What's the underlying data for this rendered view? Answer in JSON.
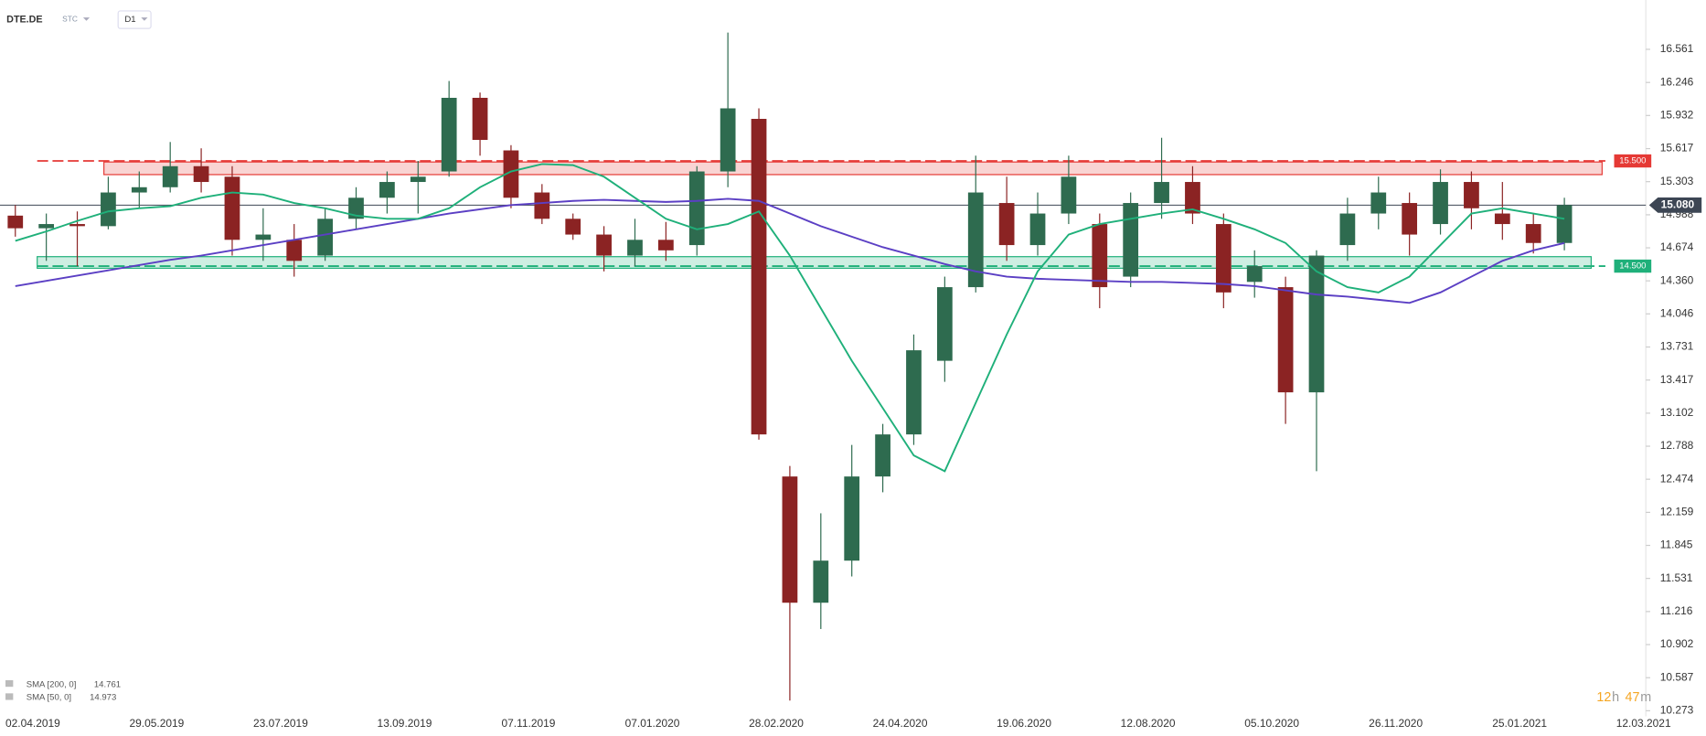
{
  "header": {
    "symbol": "DTE.DE",
    "kind": "STC",
    "interval": "D1"
  },
  "timer": [
    "12",
    "h",
    "47",
    "m"
  ],
  "chart_data": {
    "type": "candlestick",
    "candles": {
      "up_color": "#2e6b4f",
      "down_color": "#8b2323",
      "open": [
        14.98,
        14.86,
        14.9,
        14.88,
        15.2,
        15.25,
        15.45,
        15.35,
        14.75,
        14.75,
        14.6,
        14.95,
        15.15,
        15.3,
        15.4,
        16.1,
        15.6,
        15.2,
        14.95,
        14.8,
        14.6,
        14.75,
        14.7,
        15.4,
        15.9,
        12.5,
        11.3,
        11.7,
        12.5,
        12.9,
        13.6,
        14.3,
        15.1,
        14.7,
        15.0,
        14.9,
        14.4,
        15.1,
        15.3,
        14.9,
        14.35,
        14.3,
        13.3,
        14.7,
        15.0,
        15.1,
        14.9,
        15.3,
        15.0,
        14.9,
        14.72
      ],
      "high": [
        15.08,
        15.0,
        15.02,
        15.35,
        15.4,
        15.68,
        15.62,
        15.45,
        15.05,
        14.9,
        15.05,
        15.25,
        15.4,
        15.5,
        16.26,
        16.15,
        15.65,
        15.28,
        15.0,
        14.88,
        14.95,
        14.92,
        15.45,
        16.72,
        16.0,
        12.6,
        12.15,
        12.8,
        13.0,
        13.85,
        14.4,
        15.55,
        15.35,
        15.2,
        15.55,
        15.0,
        15.2,
        15.72,
        15.45,
        15.0,
        14.65,
        14.4,
        14.65,
        15.15,
        15.35,
        15.2,
        15.42,
        15.4,
        15.3,
        15.0,
        15.15
      ],
      "low": [
        14.78,
        14.55,
        14.5,
        14.85,
        15.05,
        15.2,
        15.2,
        14.6,
        14.55,
        14.4,
        14.55,
        14.85,
        15.0,
        15.0,
        15.35,
        15.55,
        15.05,
        14.9,
        14.75,
        14.45,
        14.5,
        14.55,
        14.6,
        15.25,
        12.85,
        10.37,
        11.05,
        11.55,
        12.35,
        12.8,
        13.4,
        14.25,
        14.55,
        14.6,
        14.9,
        14.1,
        14.3,
        14.95,
        14.9,
        14.1,
        14.2,
        13.0,
        12.55,
        14.55,
        14.85,
        14.6,
        14.8,
        14.85,
        14.75,
        14.62,
        14.65
      ],
      "close": [
        14.86,
        14.9,
        14.88,
        15.2,
        15.25,
        15.45,
        15.3,
        14.75,
        14.8,
        14.55,
        14.95,
        15.15,
        15.3,
        15.35,
        16.1,
        15.7,
        15.15,
        14.95,
        14.8,
        14.6,
        14.75,
        14.65,
        15.4,
        16.0,
        12.9,
        11.3,
        11.7,
        12.5,
        12.9,
        13.7,
        14.3,
        15.2,
        14.7,
        15.0,
        15.35,
        14.3,
        15.1,
        15.3,
        15.0,
        14.25,
        14.5,
        13.3,
        14.6,
        15.0,
        15.2,
        14.8,
        15.3,
        15.05,
        14.9,
        14.72,
        15.08
      ]
    },
    "series": [
      {
        "name": "SMA [200, 0]",
        "last_value": 14.761,
        "color": "#5b3fc4",
        "values": [
          14.31,
          14.36,
          14.41,
          14.46,
          14.51,
          14.56,
          14.6,
          14.65,
          14.7,
          14.75,
          14.8,
          14.85,
          14.9,
          14.95,
          15.0,
          15.04,
          15.08,
          15.1,
          15.12,
          15.13,
          15.12,
          15.11,
          15.12,
          15.14,
          15.12,
          15.0,
          14.88,
          14.78,
          14.68,
          14.6,
          14.52,
          14.45,
          14.4,
          14.38,
          14.37,
          14.36,
          14.35,
          14.35,
          14.34,
          14.33,
          14.31,
          14.27,
          14.23,
          14.21,
          14.18,
          14.15,
          14.25,
          14.4,
          14.55,
          14.65,
          14.72
        ]
      },
      {
        "name": "SMA [50, 0]",
        "last_value": 14.973,
        "color": "#1fb07a",
        "values": [
          14.74,
          14.83,
          14.93,
          15.02,
          15.05,
          15.07,
          15.15,
          15.2,
          15.18,
          15.1,
          15.05,
          14.98,
          14.95,
          14.95,
          15.05,
          15.25,
          15.4,
          15.47,
          15.46,
          15.35,
          15.15,
          14.95,
          14.85,
          14.9,
          15.02,
          14.6,
          14.1,
          13.6,
          13.15,
          12.7,
          12.55,
          13.2,
          13.85,
          14.45,
          14.8,
          14.9,
          14.95,
          15.0,
          15.04,
          14.95,
          14.85,
          14.72,
          14.45,
          14.3,
          14.25,
          14.4,
          14.7,
          15.0,
          15.05,
          15.0,
          14.95
        ]
      }
    ],
    "zones": [
      {
        "top": 15.49,
        "bottom": 15.37,
        "color": "#e53935"
      },
      {
        "top": 14.59,
        "bottom": 14.48,
        "color": "#1fb07a"
      }
    ],
    "levels": [
      {
        "value": 15.5,
        "label": "15.500",
        "color": "#e53935"
      },
      {
        "value": 14.5,
        "label": "14.500",
        "color": "#1fb07a"
      }
    ],
    "current_price": {
      "value": 15.08,
      "label": "15.080",
      "color": "#3d4654"
    },
    "x_labels": [
      "02.04.2019",
      "29.05.2019",
      "23.07.2019",
      "13.09.2019",
      "07.11.2019",
      "07.01.2020",
      "28.02.2020",
      "24.04.2020",
      "19.06.2020",
      "12.08.2020",
      "05.10.2020",
      "26.11.2020",
      "25.01.2021",
      "12.03.2021"
    ],
    "ylim": [
      10.22,
      17.03
    ],
    "yticks": [
      {
        "value": 16.561,
        "label": "16.561"
      },
      {
        "value": 16.246,
        "label": "16.246"
      },
      {
        "value": 15.932,
        "label": "15.932"
      },
      {
        "value": 15.617,
        "label": "15.617"
      },
      {
        "value": 15.303,
        "label": "15.303"
      },
      {
        "value": 14.988,
        "label": "14.988"
      },
      {
        "value": 14.674,
        "label": "14.674"
      },
      {
        "value": 14.36,
        "label": "14.360"
      },
      {
        "value": 14.046,
        "label": "14.046"
      },
      {
        "value": 13.731,
        "label": "13.731"
      },
      {
        "value": 13.417,
        "label": "13.417"
      },
      {
        "value": 13.102,
        "label": "13.102"
      },
      {
        "value": 12.788,
        "label": "12.788"
      },
      {
        "value": 12.474,
        "label": "12.474"
      },
      {
        "value": 12.159,
        "label": "12.159"
      },
      {
        "value": 11.845,
        "label": "11.845"
      },
      {
        "value": 11.531,
        "label": "11.531"
      },
      {
        "value": 11.216,
        "label": "11.216"
      },
      {
        "value": 10.902,
        "label": "10.902"
      },
      {
        "value": 10.587,
        "label": "10.587"
      },
      {
        "value": 10.273,
        "label": "10.273"
      }
    ]
  }
}
